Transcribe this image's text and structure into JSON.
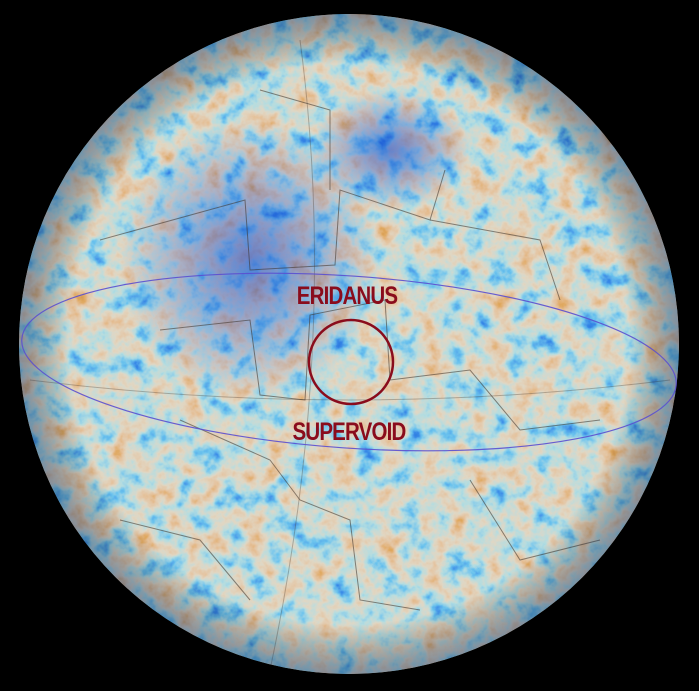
{
  "labels": {
    "top": "ERIDANUS",
    "bottom": "SUPERVOID"
  },
  "colors": {
    "label": "#8a0c1c",
    "circle": "#8a0c1c",
    "ecliptic": "#5a4fd0",
    "cold": "#0a3cc8",
    "hot": "#c0640e",
    "background": "#000000"
  }
}
